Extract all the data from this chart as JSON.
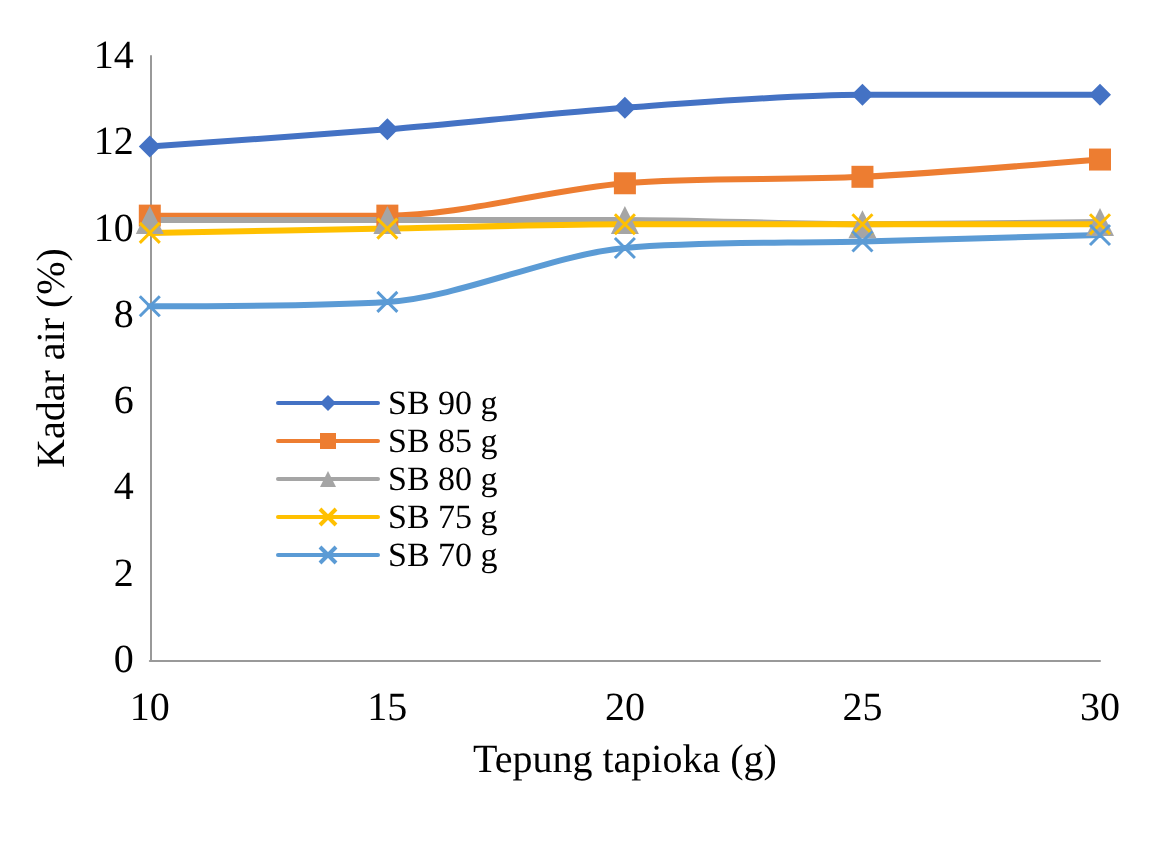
{
  "chart_data": {
    "type": "line",
    "xlabel": "Tepung tapioka (g)",
    "ylabel": "Kadar air (%)",
    "x": [
      10,
      15,
      20,
      25,
      30
    ],
    "xlim": [
      10,
      30
    ],
    "xticks": [
      10,
      15,
      20,
      25,
      30
    ],
    "ylim": [
      0,
      14
    ],
    "yticks": [
      0,
      2,
      4,
      6,
      8,
      10,
      12,
      14
    ],
    "grid": false,
    "legend": "left",
    "series": [
      {
        "name": "SB 90 g",
        "color": "#4472c4",
        "marker": "diamond",
        "values": [
          11.9,
          12.3,
          12.8,
          13.1,
          13.1
        ]
      },
      {
        "name": "SB 85 g",
        "color": "#ed7d31",
        "marker": "square",
        "values": [
          10.3,
          10.3,
          11.05,
          11.2,
          11.6
        ]
      },
      {
        "name": "SB 80 g",
        "color": "#a5a5a5",
        "marker": "triangle",
        "values": [
          10.2,
          10.2,
          10.2,
          10.1,
          10.15
        ]
      },
      {
        "name": "SB 75 g",
        "color": "#ffc000",
        "marker": "cross",
        "values": [
          9.9,
          10.0,
          10.1,
          10.1,
          10.1
        ]
      },
      {
        "name": "SB 70 g",
        "color": "#5b9bd5",
        "marker": "cross",
        "values": [
          8.2,
          8.3,
          9.55,
          9.7,
          9.85
        ]
      }
    ]
  }
}
